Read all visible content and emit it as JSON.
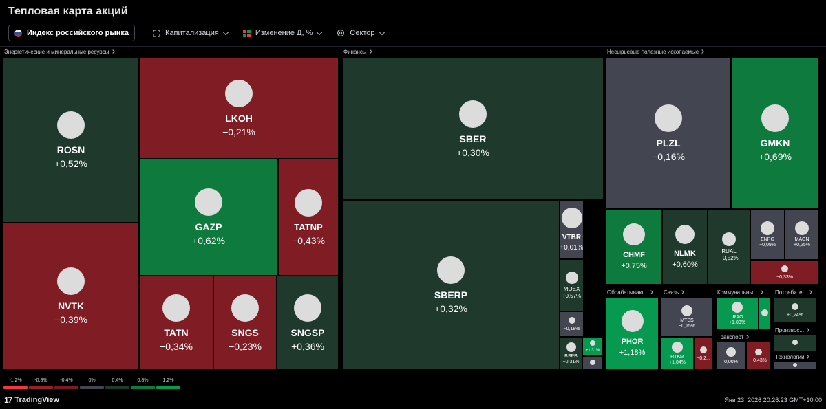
{
  "header": {
    "title": "Тепловая карта акций"
  },
  "toolbar": {
    "index": "Индекс российского рынка",
    "size": "Капитализация",
    "color": "Изменение Д, %",
    "group": "Сектор"
  },
  "sectors": {
    "energy": "Энергетические и минеральные ресурсы",
    "finance": "Финансы",
    "minerals": "Несырьевые полезные ископаемые",
    "process": "Обрабатываю...",
    "comm": "Связь",
    "util": "Коммунальны...",
    "consumer": "Потребите...",
    "transport": "Транспорт",
    "production": "Произвос...",
    "tech": "Технологии"
  },
  "tiles": [
    {
      "ticker": "ROSN",
      "change": "+0,52%"
    },
    {
      "ticker": "LKOH",
      "change": "−0,21%"
    },
    {
      "ticker": "GAZP",
      "change": "+0,62%"
    },
    {
      "ticker": "TATNP",
      "change": "−0,43%"
    },
    {
      "ticker": "NVTK",
      "change": "−0,39%"
    },
    {
      "ticker": "TATN",
      "change": "−0,34%"
    },
    {
      "ticker": "SNGS",
      "change": "−0,23%"
    },
    {
      "ticker": "SNGSP",
      "change": "+0,36%"
    },
    {
      "ticker": "SBER",
      "change": "+0,30%"
    },
    {
      "ticker": "SBERP",
      "change": "+0,32%"
    },
    {
      "ticker": "VTBR",
      "change": "+0,01%"
    },
    {
      "ticker": "MOEX",
      "change": "+0,57%"
    },
    {
      "ticker": "",
      "change": "−0,18%"
    },
    {
      "ticker": "BSPB",
      "change": "+0,31%"
    },
    {
      "ticker": "",
      "change": "+1,31%"
    },
    {
      "ticker": "",
      "change": ""
    },
    {
      "ticker": "PLZL",
      "change": "−0,16%"
    },
    {
      "ticker": "GMKN",
      "change": "+0,69%"
    },
    {
      "ticker": "CHMF",
      "change": "+0,75%"
    },
    {
      "ticker": "NLMK",
      "change": "+0,60%"
    },
    {
      "ticker": "RUAL",
      "change": "+0,52%"
    },
    {
      "ticker": "ENPG",
      "change": "−0,09%"
    },
    {
      "ticker": "MAGN",
      "change": "+0,25%"
    },
    {
      "ticker": "",
      "change": "−0,33%"
    },
    {
      "ticker": "PHOR",
      "change": "+1,18%"
    },
    {
      "ticker": "MTSS",
      "change": "−0,15%"
    },
    {
      "ticker": "RTKM",
      "change": "+1,04%"
    },
    {
      "ticker": "",
      "change": "−0,2..."
    },
    {
      "ticker": "IRAO",
      "change": "+1,09%"
    },
    {
      "ticker": "",
      "change": ""
    },
    {
      "ticker": "",
      "change": "+0,24%"
    },
    {
      "ticker": "",
      "change": "0,00%"
    },
    {
      "ticker": "",
      "change": "−0,43%"
    },
    {
      "ticker": "",
      "change": ""
    },
    {
      "ticker": "",
      "change": ""
    }
  ],
  "legend": [
    "-1.2%",
    "-0.8%",
    "-0.4%",
    "0%",
    "0.4%",
    "0.8%",
    "1.2%"
  ],
  "legend_colors": [
    "#f23645",
    "#991f29",
    "#7a1a22",
    "#434651",
    "#1e3a2b",
    "#0f7a3e",
    "#089950"
  ],
  "footer": {
    "brand": "TradingView",
    "timestamp": "Янв 23, 2026 20:26:23 GMT+10:00"
  }
}
